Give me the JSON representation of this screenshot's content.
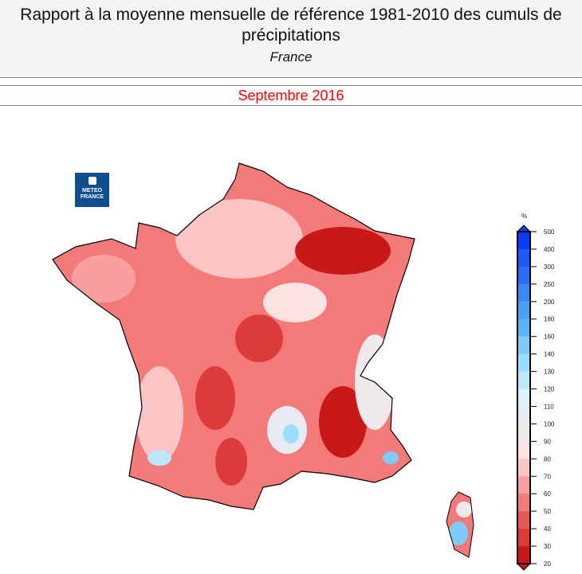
{
  "header": {
    "title": "Rapport à la moyenne mensuelle de référence 1981-2010 des cumuls de précipitations",
    "region": "France"
  },
  "period": "Septembre 2016",
  "logo": {
    "text_line1": "METEO",
    "text_line2": "FRANCE"
  },
  "legend": {
    "unit": "%",
    "ticks": [
      "500",
      "400",
      "300",
      "250",
      "200",
      "180",
      "160",
      "140",
      "130",
      "120",
      "110",
      "100",
      "90",
      "80",
      "70",
      "60",
      "50",
      "40",
      "30",
      "20"
    ],
    "colors": [
      "#0a3cff",
      "#1e5af5",
      "#2a6ef5",
      "#3a8af5",
      "#4aa0f5",
      "#5ab4f8",
      "#7ecbfc",
      "#9cdcfd",
      "#bde8fb",
      "#dcf2fc",
      "#e6ecf2",
      "#eeeaec",
      "#fbe3e3",
      "#fbc5c5",
      "#f8a0a0",
      "#f47a7a",
      "#e95858",
      "#dd3a3a",
      "#c81818"
    ]
  }
}
